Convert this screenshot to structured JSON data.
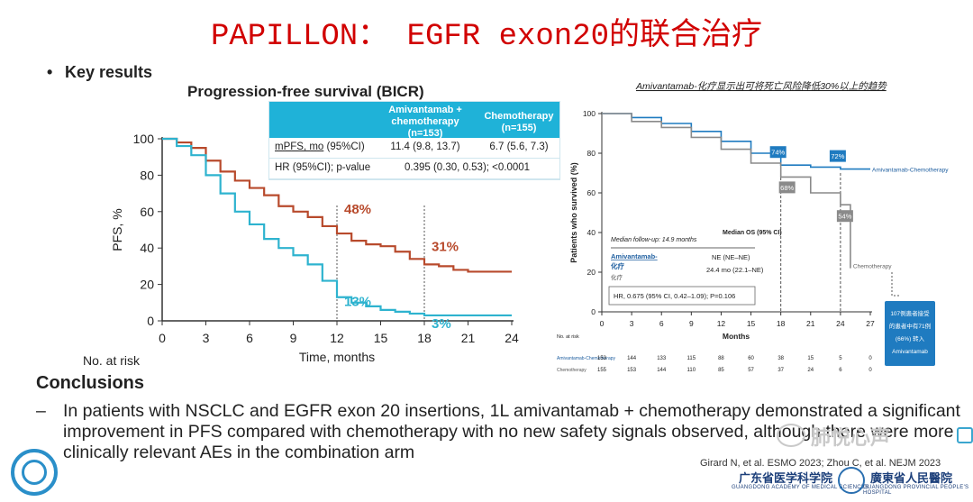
{
  "slide": {
    "title": "PAPILLON： EGFR exon20的联合治疗",
    "bullet": "Key results",
    "conclusions_title": "Conclusions",
    "conclusions_dash": "–",
    "conclusions_text": "In patients with NSCLC and EGFR exon 20 insertions, 1L amivantamab + chemotherapy demonstrated a significant improvement in PFS compared with chemotherapy with no new safety signals observed, although there were more clinically relevant AEs in the combination arm",
    "reference": "Girard N, et al. ESMO 2023; Zhou C, et al. NEJM 2023",
    "watermark": "肺悦心声",
    "institution_1": "广东省医学科学院",
    "institution_1_en": "GUANGDONG ACADEMY OF MEDICAL SCIENCES",
    "institution_2": "廣東省人民醫院",
    "institution_2_en": "GUANGDONG PROVINCIAL PEOPLE'S HOSPITAL"
  },
  "pfs_table": {
    "head_col1": "Amivantamab + chemotherapy (n=153)",
    "head_col2": "Chemotherapy (n=155)",
    "row1_label_a": "mPFS, mo",
    "row1_label_b": " (95%CI)",
    "row1_col1": "11.4 (9.8, 13.7)",
    "row1_col2": "6.7 (5.6, 7.3)",
    "row2_label": "HR (95%CI); p-value",
    "row2_value": "0.395 (0.30, 0.53); <0.0001"
  },
  "os_table": {
    "followup": "Median follow-up: 14.9 months",
    "median_header": "Median OS (95% CI)",
    "arm1_label_a": "Amivantamab-",
    "arm1_label_b": "化疗",
    "arm1_value": "NE (NE–NE)",
    "arm2_label": "化疗",
    "arm2_value": "24.4 mo (22.1–NE)",
    "hr_text": "HR, 0.675 (95% CI, 0.42–1.09); P=0.106",
    "callout": "107例患者接受的患者中有71例 (66%) 转入 Amivantamab"
  },
  "chart_data": [
    {
      "type": "line",
      "title": "Progression-free survival (BICR)",
      "xlabel": "Time, months",
      "ylabel": "PFS, %",
      "xlim": [
        0,
        24
      ],
      "ylim": [
        0,
        100
      ],
      "xticks": [
        0,
        3,
        6,
        9,
        12,
        15,
        18,
        21,
        24
      ],
      "yticks": [
        0,
        20,
        40,
        60,
        80,
        100
      ],
      "grid": false,
      "reference_lines_x": [
        12,
        18
      ],
      "series": [
        {
          "color": "#b84a2c",
          "x": [
            0,
            1,
            2,
            3,
            4,
            5,
            6,
            7,
            8,
            9,
            10,
            11,
            12,
            13,
            14,
            15,
            16,
            17,
            18,
            19,
            20,
            21,
            22,
            23,
            24
          ],
          "y": [
            100,
            98,
            95,
            88,
            82,
            77,
            73,
            69,
            63,
            60,
            57,
            52,
            48,
            44,
            42,
            41,
            38,
            34,
            31,
            30,
            28,
            27,
            27,
            27,
            27
          ]
        },
        {
          "color": "#2eb3cf",
          "x": [
            0,
            1,
            2,
            3,
            4,
            5,
            6,
            7,
            8,
            9,
            10,
            11,
            12,
            13,
            14,
            15,
            16,
            17,
            18,
            19,
            20,
            21,
            22,
            23,
            24
          ],
          "y": [
            100,
            96,
            91,
            80,
            70,
            60,
            53,
            45,
            40,
            36,
            31,
            22,
            13,
            10,
            8,
            6,
            5,
            4,
            3,
            3,
            3,
            3,
            3,
            3,
            3
          ]
        }
      ],
      "annotations": [
        {
          "text": "48%",
          "x": 12,
          "y": 48,
          "color": "#b84a2c"
        },
        {
          "text": "31%",
          "x": 18,
          "y": 31,
          "color": "#b84a2c"
        },
        {
          "text": "13%",
          "x": 12,
          "y": 13,
          "color": "#2eb3cf"
        },
        {
          "text": "3%",
          "x": 18,
          "y": 3,
          "color": "#2eb3cf"
        }
      ],
      "risk_label": "No. at risk"
    },
    {
      "type": "line",
      "title": "Amivantamab-化疗显示出可将死亡风险降低30%以上的趋势",
      "xlabel": "Months",
      "ylabel": "Patients who survived (%)",
      "xlim": [
        0,
        27
      ],
      "ylim": [
        0,
        100
      ],
      "xticks": [
        0,
        3,
        6,
        9,
        12,
        15,
        18,
        21,
        24,
        27
      ],
      "yticks": [
        0,
        20,
        40,
        60,
        80,
        100
      ],
      "grid": false,
      "reference_lines_x": [
        18,
        24
      ],
      "series": [
        {
          "name": "Amivantamab-Chemotherapy",
          "color": "#1f7bc0",
          "x": [
            0,
            3,
            6,
            9,
            12,
            15,
            18,
            21,
            24,
            27
          ],
          "y": [
            100,
            98,
            95,
            91,
            86,
            80,
            74,
            73,
            72,
            72
          ]
        },
        {
          "name": "Chemotherapy",
          "color": "#8a8a8a",
          "x": [
            0,
            3,
            6,
            9,
            12,
            15,
            18,
            21,
            24,
            25
          ],
          "y": [
            100,
            96,
            93,
            88,
            82,
            75,
            68,
            60,
            54,
            22
          ]
        }
      ],
      "annotations": [
        {
          "text": "74%",
          "x": 18,
          "y": 74,
          "color": "#1f7bc0"
        },
        {
          "text": "72%",
          "x": 24,
          "y": 72,
          "color": "#1f7bc0"
        },
        {
          "text": "68%",
          "x": 18,
          "y": 68,
          "color": "#8a8a8a"
        },
        {
          "text": "54%",
          "x": 24,
          "y": 54,
          "color": "#8a8a8a"
        }
      ],
      "risk_label": "No. at risk",
      "risk_table": [
        {
          "label": "Amivantamab-Chemotherapy",
          "values": [
            153,
            144,
            133,
            115,
            88,
            60,
            38,
            15,
            5,
            0
          ]
        },
        {
          "label": "Chemotherapy",
          "values": [
            155,
            153,
            144,
            110,
            85,
            57,
            37,
            24,
            6,
            0
          ]
        }
      ]
    }
  ]
}
